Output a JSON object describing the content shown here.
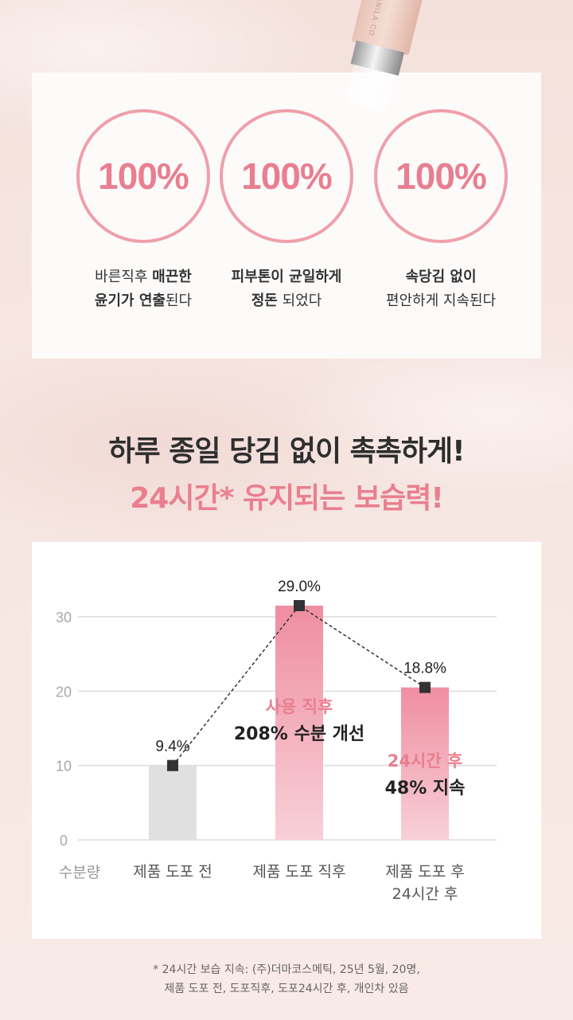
{
  "product": {
    "brand_text": "BANILA CO"
  },
  "badges": [
    {
      "value": "100%",
      "caption_line1_normal": "바른직후 ",
      "caption_line1_bold": "매끈한",
      "caption_line2_bold": "윤기가 연출",
      "caption_line2_normal": "된다"
    },
    {
      "value": "100%",
      "caption_line1_normal": "",
      "caption_line1_bold": "피부톤이 균일하게",
      "caption_line2_bold": "정돈",
      "caption_line2_normal": " 되었다"
    },
    {
      "value": "100%",
      "caption_line1_normal": "",
      "caption_line1_bold": "속당김 없이",
      "caption_line2_bold": "",
      "caption_line2_normal": "편안하게 지속된다"
    }
  ],
  "headline": {
    "line1": "하루 종일 당김 없이 촉촉하게!",
    "line2": "24시간* 유지되는 보습력!"
  },
  "chart_data": {
    "type": "bar",
    "categories": [
      "제품 도포 전",
      "제품 도포 직후",
      "제품 도포 후\n24시간 후"
    ],
    "category_lines": [
      [
        "제품 도포 전"
      ],
      [
        "제품 도포 직후"
      ],
      [
        "제품 도포 후",
        "24시간 후"
      ]
    ],
    "values": [
      9.4,
      29.0,
      18.8
    ],
    "value_labels": [
      "9.4%",
      "29.0%",
      "18.8%"
    ],
    "bar_values": [
      10,
      31.5,
      20.5
    ],
    "ylabel": "수분량",
    "ylim": [
      0,
      30
    ],
    "yticks": [
      0,
      10,
      20,
      30
    ],
    "grid": true,
    "bar_colors": [
      "#e0e0e0",
      "#ee8ea0",
      "#ee8ea0"
    ],
    "line_style": "dashed",
    "annotations": [
      {
        "bar": 1,
        "accent": "사용 직후",
        "text": "208% 수분 개선"
      },
      {
        "bar": 2,
        "accent": "24시간 후",
        "text": "48% 지속"
      }
    ]
  },
  "footnote": {
    "line1": "* 24시간 보습 지속: (주)더마코스메틱, 25년 5월, 20명,",
    "line2": "제품 도포 전, 도포직후, 도포24시간 후, 개인차 있음"
  },
  "colors": {
    "accent": "#e97f8f",
    "ring": "#ef9fab",
    "text": "#2e2e2e"
  }
}
